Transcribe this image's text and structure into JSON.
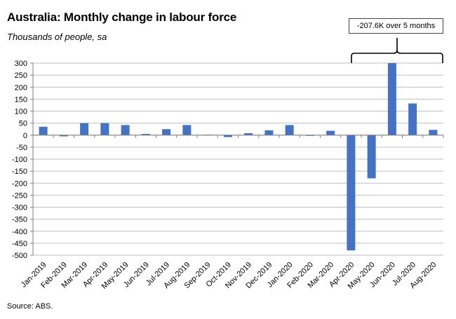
{
  "title": "Australia: Monthly change in labour force",
  "subtitle": "Thousands of people, sa",
  "source": "Source: ABS.",
  "annotation": "-207.6K over 5 months",
  "colors": {
    "bar": "#4472C4",
    "grid": "#BFBFBF",
    "axis": "#7F7F7F"
  },
  "chart_data": {
    "type": "bar",
    "categories": [
      "Jan-2019",
      "Feb-2019",
      "Mar-2019",
      "Apr-2019",
      "May-2019",
      "Jun-2019",
      "Jul-2019",
      "Aug-2019",
      "Sep-2019",
      "Oct-2019",
      "Nov-2019",
      "Dec-2019",
      "Jan-2020",
      "Feb-2020",
      "Mar-2020",
      "Apr-2020",
      "May-2020",
      "Jun-2020",
      "Jul-2020",
      "Aug-2020"
    ],
    "values": [
      35,
      -5,
      50,
      50,
      42,
      5,
      25,
      42,
      2,
      -8,
      8,
      20,
      42,
      -3,
      18,
      -480,
      -180,
      300,
      132,
      22
    ],
    "ylim": [
      -500,
      300
    ],
    "yticks": [
      300,
      250,
      200,
      150,
      100,
      50,
      0,
      -50,
      -100,
      -150,
      -200,
      -250,
      -300,
      -350,
      -400,
      -450,
      -500
    ],
    "grid": true,
    "legend": "none"
  }
}
